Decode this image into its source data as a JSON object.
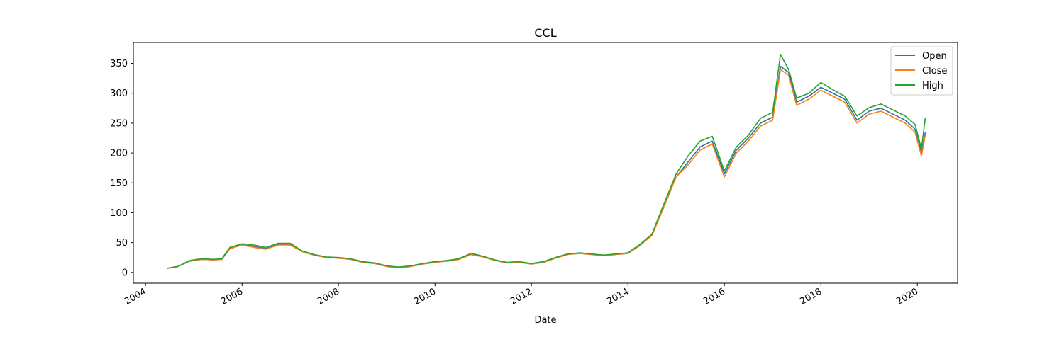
{
  "chart_data": {
    "type": "line",
    "title": "CCL",
    "xlabel": "Date",
    "ylabel": "",
    "xlim": [
      "2003-10-01",
      "2020-11-01"
    ],
    "ylim": [
      -18,
      385
    ],
    "x_ticks": [
      "2004",
      "2006",
      "2008",
      "2010",
      "2012",
      "2014",
      "2016",
      "2018",
      "2020"
    ],
    "y_ticks": [
      0,
      50,
      100,
      150,
      200,
      250,
      300,
      350
    ],
    "grid": false,
    "legend_position": "top-right",
    "colors": {
      "Open": "#1f77b4",
      "Close": "#ff7f0e",
      "High": "#2ca02c"
    },
    "x": [
      "2004-06-15",
      "2004-09-01",
      "2004-12-01",
      "2005-03-01",
      "2005-06-01",
      "2005-08-01",
      "2005-10-01",
      "2006-01-01",
      "2006-04-01",
      "2006-07-01",
      "2006-10-01",
      "2007-01-01",
      "2007-04-01",
      "2007-07-01",
      "2007-10-01",
      "2008-01-01",
      "2008-04-01",
      "2008-07-01",
      "2008-10-01",
      "2009-01-01",
      "2009-04-01",
      "2009-07-01",
      "2009-10-01",
      "2010-01-01",
      "2010-04-01",
      "2010-07-01",
      "2010-10-01",
      "2011-01-01",
      "2011-04-01",
      "2011-07-01",
      "2011-10-01",
      "2012-01-01",
      "2012-04-01",
      "2012-07-01",
      "2012-10-01",
      "2013-01-01",
      "2013-04-01",
      "2013-07-01",
      "2013-10-01",
      "2014-01-01",
      "2014-04-01",
      "2014-07-01",
      "2014-10-01",
      "2015-01-01",
      "2015-04-01",
      "2015-07-01",
      "2015-10-01",
      "2016-01-01",
      "2016-04-01",
      "2016-07-01",
      "2016-10-01",
      "2017-01-01",
      "2017-03-01",
      "2017-05-01",
      "2017-07-01",
      "2017-10-01",
      "2018-01-01",
      "2018-04-01",
      "2018-07-01",
      "2018-10-01",
      "2019-01-01",
      "2019-04-01",
      "2019-07-01",
      "2019-10-01",
      "2019-12-15",
      "2020-02-01",
      "2020-03-01"
    ],
    "series": [
      {
        "name": "Open",
        "values": [
          7,
          10,
          19,
          22,
          21,
          22,
          40,
          46,
          44,
          40,
          47,
          47,
          35,
          29,
          25,
          24,
          22,
          17,
          15,
          10,
          8,
          10,
          14,
          17,
          19,
          22,
          30,
          26,
          20,
          16,
          17,
          14,
          17,
          24,
          30,
          32,
          30,
          28,
          30,
          32,
          45,
          62,
          110,
          160,
          185,
          210,
          220,
          165,
          205,
          225,
          250,
          260,
          345,
          335,
          285,
          295,
          310,
          300,
          290,
          255,
          270,
          275,
          265,
          255,
          240,
          200,
          235
        ]
      },
      {
        "name": "Close",
        "values": [
          7,
          10,
          19,
          22,
          21,
          22,
          40,
          46,
          42,
          39,
          46,
          46,
          35,
          29,
          25,
          24,
          22,
          17,
          15,
          10,
          8,
          10,
          14,
          17,
          19,
          22,
          30,
          26,
          20,
          16,
          17,
          14,
          17,
          24,
          30,
          32,
          30,
          28,
          30,
          32,
          45,
          62,
          110,
          160,
          180,
          205,
          215,
          160,
          200,
          220,
          245,
          255,
          340,
          330,
          280,
          290,
          305,
          295,
          285,
          250,
          265,
          270,
          260,
          250,
          235,
          195,
          230
        ]
      },
      {
        "name": "High",
        "values": [
          7,
          10,
          20,
          23,
          22,
          23,
          42,
          48,
          46,
          42,
          49,
          49,
          36,
          30,
          26,
          25,
          23,
          18,
          16,
          11,
          9,
          11,
          15,
          18,
          20,
          23,
          32,
          27,
          21,
          17,
          18,
          15,
          18,
          25,
          31,
          33,
          31,
          29,
          31,
          33,
          47,
          64,
          115,
          165,
          195,
          220,
          228,
          170,
          210,
          230,
          258,
          268,
          365,
          340,
          292,
          300,
          318,
          306,
          295,
          262,
          276,
          282,
          272,
          262,
          248,
          207,
          258
        ]
      }
    ]
  }
}
